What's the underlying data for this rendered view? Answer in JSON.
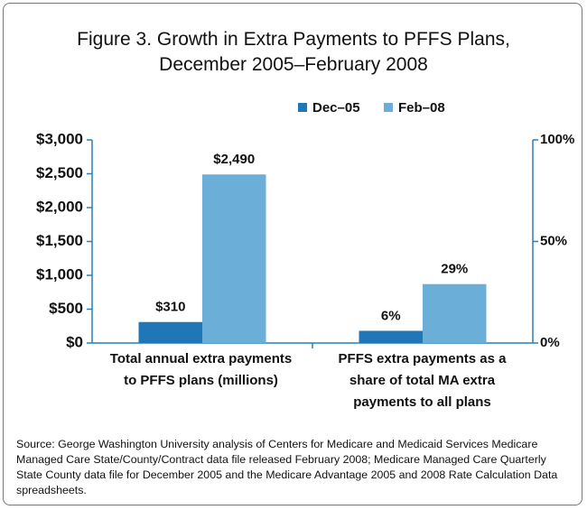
{
  "chart_data": {
    "type": "bar",
    "title": "Figure 3. Growth in Extra Payments to PFFS Plans, December 2005–February 2008",
    "categories": [
      "Total annual extra payments to PFFS plans (millions)",
      "PFFS extra payments as a share of total MA extra payments to all plans"
    ],
    "category_axes": [
      "y",
      "y2"
    ],
    "series": [
      {
        "name": "Dec–05",
        "color": "#1f77b8",
        "values": [
          310,
          6
        ],
        "value_labels": [
          "$310",
          "6%"
        ]
      },
      {
        "name": "Feb–08",
        "color": "#6baed8",
        "values": [
          2490,
          29
        ],
        "value_labels": [
          "$2,490",
          "29%"
        ]
      }
    ],
    "ylim": [
      0,
      3000
    ],
    "yticks": [
      {
        "value": 0,
        "label": "$0"
      },
      {
        "value": 500,
        "label": "$500"
      },
      {
        "value": 1000,
        "label": "$1,000"
      },
      {
        "value": 1500,
        "label": "$1,500"
      },
      {
        "value": 2000,
        "label": "$2,000"
      },
      {
        "value": 2500,
        "label": "$2,500"
      },
      {
        "value": 3000,
        "label": "$3,000"
      }
    ],
    "y2lim": [
      0,
      100
    ],
    "y2ticks": [
      {
        "value": 0,
        "label": "0%"
      },
      {
        "value": 50,
        "label": "50%"
      },
      {
        "value": 100,
        "label": "100%"
      }
    ],
    "legend": "top",
    "grid": false,
    "source": "Source: George Washington University analysis of Centers for Medicare and Medicaid Services Medicare Managed Care State/County/Contract data file released February 2008; Medicare Managed Care Quarterly State County data file for December 2005 and the Medicare Advantage 2005 and 2008 Rate Calculation Data spreadsheets."
  }
}
